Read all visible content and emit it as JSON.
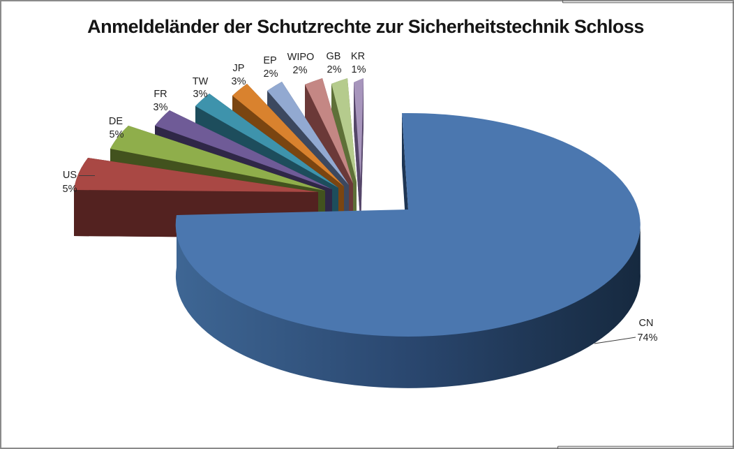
{
  "window": {
    "background": "#ffffff",
    "border_color": "#8a8a8a",
    "edge_artifact_color": "#646464"
  },
  "chart_data": {
    "type": "pie",
    "style": "3d-exploded-pie",
    "title": "Anmeldeländer der Schutzrechte zur Sicherheitstechnik Schloss",
    "unit": "%",
    "legend": "none",
    "data_labels": "category-name-and-percent-outside",
    "slices": [
      {
        "label": "CN",
        "value": 74,
        "pct_label": "74%",
        "color": "#4B77AF",
        "side_color": "#16293F"
      },
      {
        "label": "US",
        "value": 5,
        "pct_label": "5%",
        "color": "#A94844",
        "side_color": "#532220"
      },
      {
        "label": "DE",
        "value": 5,
        "pct_label": "5%",
        "color": "#8FAE4B",
        "side_color": "#42521E"
      },
      {
        "label": "FR",
        "value": 3,
        "pct_label": "3%",
        "color": "#6F5B97",
        "side_color": "#2F2747"
      },
      {
        "label": "TW",
        "value": 3,
        "pct_label": "3%",
        "color": "#3E93AC",
        "side_color": "#1D4D5C"
      },
      {
        "label": "JP",
        "value": 3,
        "pct_label": "3%",
        "color": "#D9822E",
        "side_color": "#7A4511"
      },
      {
        "label": "EP",
        "value": 2,
        "pct_label": "2%",
        "color": "#92A9D1",
        "side_color": "#3C485F"
      },
      {
        "label": "WIPO",
        "value": 2,
        "pct_label": "2%",
        "color": "#C48784",
        "side_color": "#6B3938"
      },
      {
        "label": "GB",
        "value": 2,
        "pct_label": "2%",
        "color": "#B5CB8D",
        "side_color": "#5E7038"
      },
      {
        "label": "KR",
        "value": 1,
        "pct_label": "1%",
        "color": "#A795BC",
        "side_color": "#554669"
      }
    ],
    "rim_gradient": [
      "#3E6694",
      "#2A476F",
      "#16293F"
    ]
  }
}
